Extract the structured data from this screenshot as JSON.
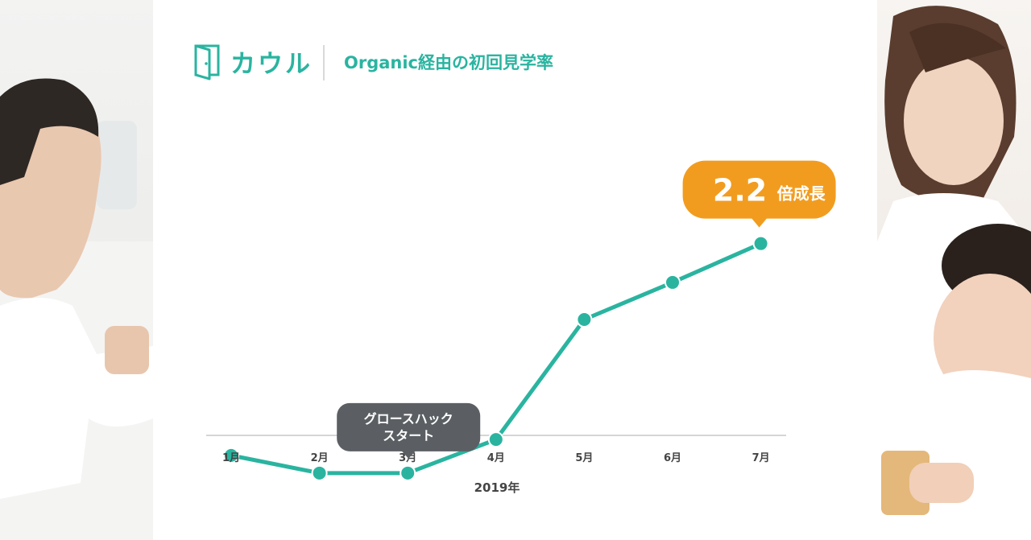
{
  "brand": {
    "name": "カウル"
  },
  "chart_data": {
    "type": "line",
    "title": "Organic経由の初回見学率",
    "xlabel": "2019年",
    "ylabel": "",
    "categories": [
      "1月",
      "2月",
      "3月",
      "4月",
      "5月",
      "6月",
      "7月"
    ],
    "values": [
      4.2,
      3.2,
      3.2,
      5.1,
      11.9,
      14.0,
      16.2
    ],
    "ylim": [
      0,
      30
    ],
    "grid": false,
    "annotations": [
      {
        "category": "3月",
        "text": [
          "グロースハック",
          "スタート"
        ],
        "style": "dark-bubble"
      },
      {
        "category": "7月",
        "value": "2.2",
        "suffix": "倍成長",
        "style": "orange-bubble"
      }
    ],
    "colors": {
      "line": "#2ab4a0",
      "point": "#2ab4a0",
      "highlight": "#f29c1f",
      "callout": "#5b5f63"
    }
  }
}
